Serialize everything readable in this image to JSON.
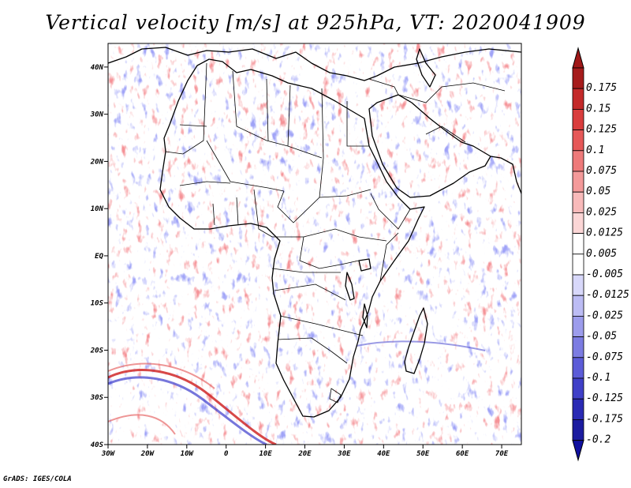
{
  "title": "Vertical velocity [m/s] at 925hPa, VT: 2020041909",
  "footer": "GrADS: IGES/COLA",
  "map": {
    "lon_range": [
      -30,
      75
    ],
    "lat_range": [
      -40,
      45
    ],
    "lat_ticks": [
      "40N",
      "30N",
      "20N",
      "10N",
      "EQ",
      "10S",
      "20S",
      "30S",
      "40S"
    ],
    "lon_ticks": [
      "30W",
      "20W",
      "10W",
      "0",
      "10E",
      "20E",
      "30E",
      "40E",
      "50E",
      "60E",
      "70E"
    ],
    "positive_color": "#e0303a",
    "negative_color": "#3a3ae0"
  },
  "colorbar": {
    "top_arrow_color": "#a01818",
    "bottom_arrow_color": "#1010a0",
    "levels": [
      {
        "label": "0.175",
        "color": "#a61c1c"
      },
      {
        "label": "0.15",
        "color": "#c42a2a"
      },
      {
        "label": "0.125",
        "color": "#d93d3d"
      },
      {
        "label": "0.1",
        "color": "#e65858"
      },
      {
        "label": "0.075",
        "color": "#ee7a7a"
      },
      {
        "label": "0.05",
        "color": "#f49a9a"
      },
      {
        "label": "0.025",
        "color": "#f8baba"
      },
      {
        "label": "0.0125",
        "color": "#fbd6d6"
      },
      {
        "label": "0.005",
        "color": "#ffffff"
      },
      {
        "label": "-0.005",
        "color": "#ffffff"
      },
      {
        "label": "-0.0125",
        "color": "#d8d8fa"
      },
      {
        "label": "-0.025",
        "color": "#bcbcf4"
      },
      {
        "label": "-0.05",
        "color": "#9c9cec"
      },
      {
        "label": "-0.075",
        "color": "#7c7ce2"
      },
      {
        "label": "-0.1",
        "color": "#5c5cd8"
      },
      {
        "label": "-0.125",
        "color": "#4040c8"
      },
      {
        "label": "-0.175",
        "color": "#2a2ab4"
      },
      {
        "label": "-0.2",
        "color": "#1c1ca0"
      }
    ]
  }
}
